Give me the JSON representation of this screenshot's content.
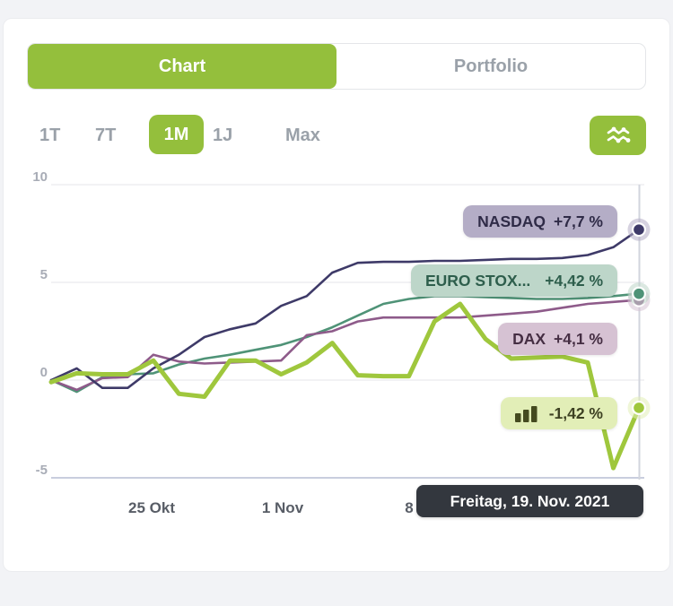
{
  "accent_color": "#94bf3c",
  "tabs": [
    {
      "label": "Chart",
      "active": true
    },
    {
      "label": "Portfolio",
      "active": false
    }
  ],
  "ranges": [
    {
      "label": "1T",
      "active": false
    },
    {
      "label": "7T",
      "active": false
    },
    {
      "label": "1M",
      "active": true
    },
    {
      "label": "1J",
      "active": false
    },
    {
      "label": "Max",
      "active": false
    }
  ],
  "chart_toggle": {
    "icon": "line-chart-icon",
    "bg": "#94bf3c"
  },
  "chart_data": {
    "type": "line",
    "ylim": [
      -5,
      10
    ],
    "yticks": [
      10,
      5,
      0,
      -5
    ],
    "grid": "horizontal",
    "num_points": 24,
    "x_tick_labels": [
      {
        "index": 4,
        "label": "25 Okt"
      },
      {
        "index": 9,
        "label": "1 Nov"
      },
      {
        "index": 14,
        "label": "8"
      }
    ],
    "crosshair_index": 23,
    "tooltip": "Freitag, 19. Nov. 2021",
    "series": [
      {
        "name": "NASDAQ",
        "change": "+7,7 %",
        "color": "#3e3a68",
        "badge_bg": "#b4adc6",
        "badge_text": "#2f2b47",
        "line_width": 2.6,
        "values": [
          0,
          0.6,
          -0.4,
          -0.4,
          0.6,
          1.3,
          2.2,
          2.6,
          2.9,
          3.8,
          4.3,
          5.5,
          6.0,
          6.05,
          6.05,
          6.1,
          6.1,
          6.15,
          6.2,
          6.2,
          6.25,
          6.4,
          6.8,
          7.7
        ]
      },
      {
        "name": "EURO STOX...",
        "change": "+4,42 %",
        "color": "#4f9377",
        "badge_bg": "#bdd6c9",
        "badge_text": "#2e5e4c",
        "line_width": 2.6,
        "values": [
          0,
          -0.6,
          0.15,
          0.3,
          0.35,
          0.8,
          1.1,
          1.3,
          1.55,
          1.8,
          2.2,
          2.7,
          3.3,
          3.9,
          4.15,
          4.3,
          4.3,
          4.25,
          4.2,
          4.15,
          4.15,
          4.2,
          4.3,
          4.42
        ]
      },
      {
        "name": "DAX",
        "change": "+4,1 %",
        "color": "#8e5b8a",
        "badge_bg": "#d6c2d3",
        "badge_text": "#452e43",
        "line_width": 2.6,
        "values": [
          0,
          -0.5,
          0.1,
          0.15,
          1.3,
          0.95,
          0.85,
          0.9,
          0.95,
          1.0,
          2.3,
          2.5,
          3.0,
          3.2,
          3.2,
          3.2,
          3.2,
          3.3,
          3.4,
          3.5,
          3.7,
          3.9,
          4.0,
          4.1
        ]
      },
      {
        "name": "Portfolio",
        "change": "-1,42 %",
        "icon": "bar-chart-icon",
        "color": "#9fc73d",
        "badge_bg": "#e2eeb7",
        "badge_text": "#3d4122",
        "line_width": 5,
        "values": [
          -0.1,
          0.35,
          0.3,
          0.3,
          1.0,
          -0.7,
          -0.85,
          1.0,
          1.0,
          0.3,
          0.9,
          1.9,
          0.25,
          0.2,
          0.2,
          3.0,
          3.9,
          2.1,
          1.1,
          1.15,
          1.2,
          0.9,
          -4.5,
          -1.42
        ]
      }
    ]
  }
}
